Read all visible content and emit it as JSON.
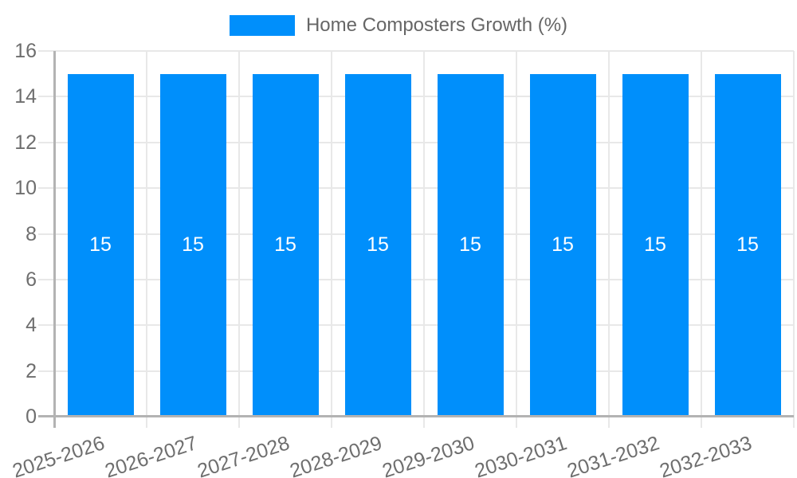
{
  "legend": {
    "label": "Home Composters Growth (%)"
  },
  "chart_data": {
    "type": "bar",
    "title": "Home Composters Growth (%)",
    "categories": [
      "2025-2026",
      "2026-2027",
      "2027-2028",
      "2028-2029",
      "2029-2030",
      "2030-2031",
      "2031-2032",
      "2032-2033"
    ],
    "series": [
      {
        "name": "Home Composters Growth (%)",
        "values": [
          15,
          15,
          15,
          15,
          15,
          15,
          15,
          15
        ]
      }
    ],
    "bar_value_labels": [
      "15",
      "15",
      "15",
      "15",
      "15",
      "15",
      "15",
      "15"
    ],
    "xlabel": "",
    "ylabel": "",
    "ylim": [
      0,
      16
    ],
    "yticks": [
      0,
      2,
      4,
      6,
      8,
      10,
      12,
      14,
      16
    ],
    "grid": true,
    "legend_position": "top",
    "colors": {
      "bar": "#008FFB",
      "bar_label_text": "#FFFFFF",
      "gridline": "#E8E8E8",
      "axis_line": "#B3B3B3",
      "tick_text": "#6E6E6E",
      "legend_text": "#666666",
      "background": "#FFFFFF"
    }
  }
}
